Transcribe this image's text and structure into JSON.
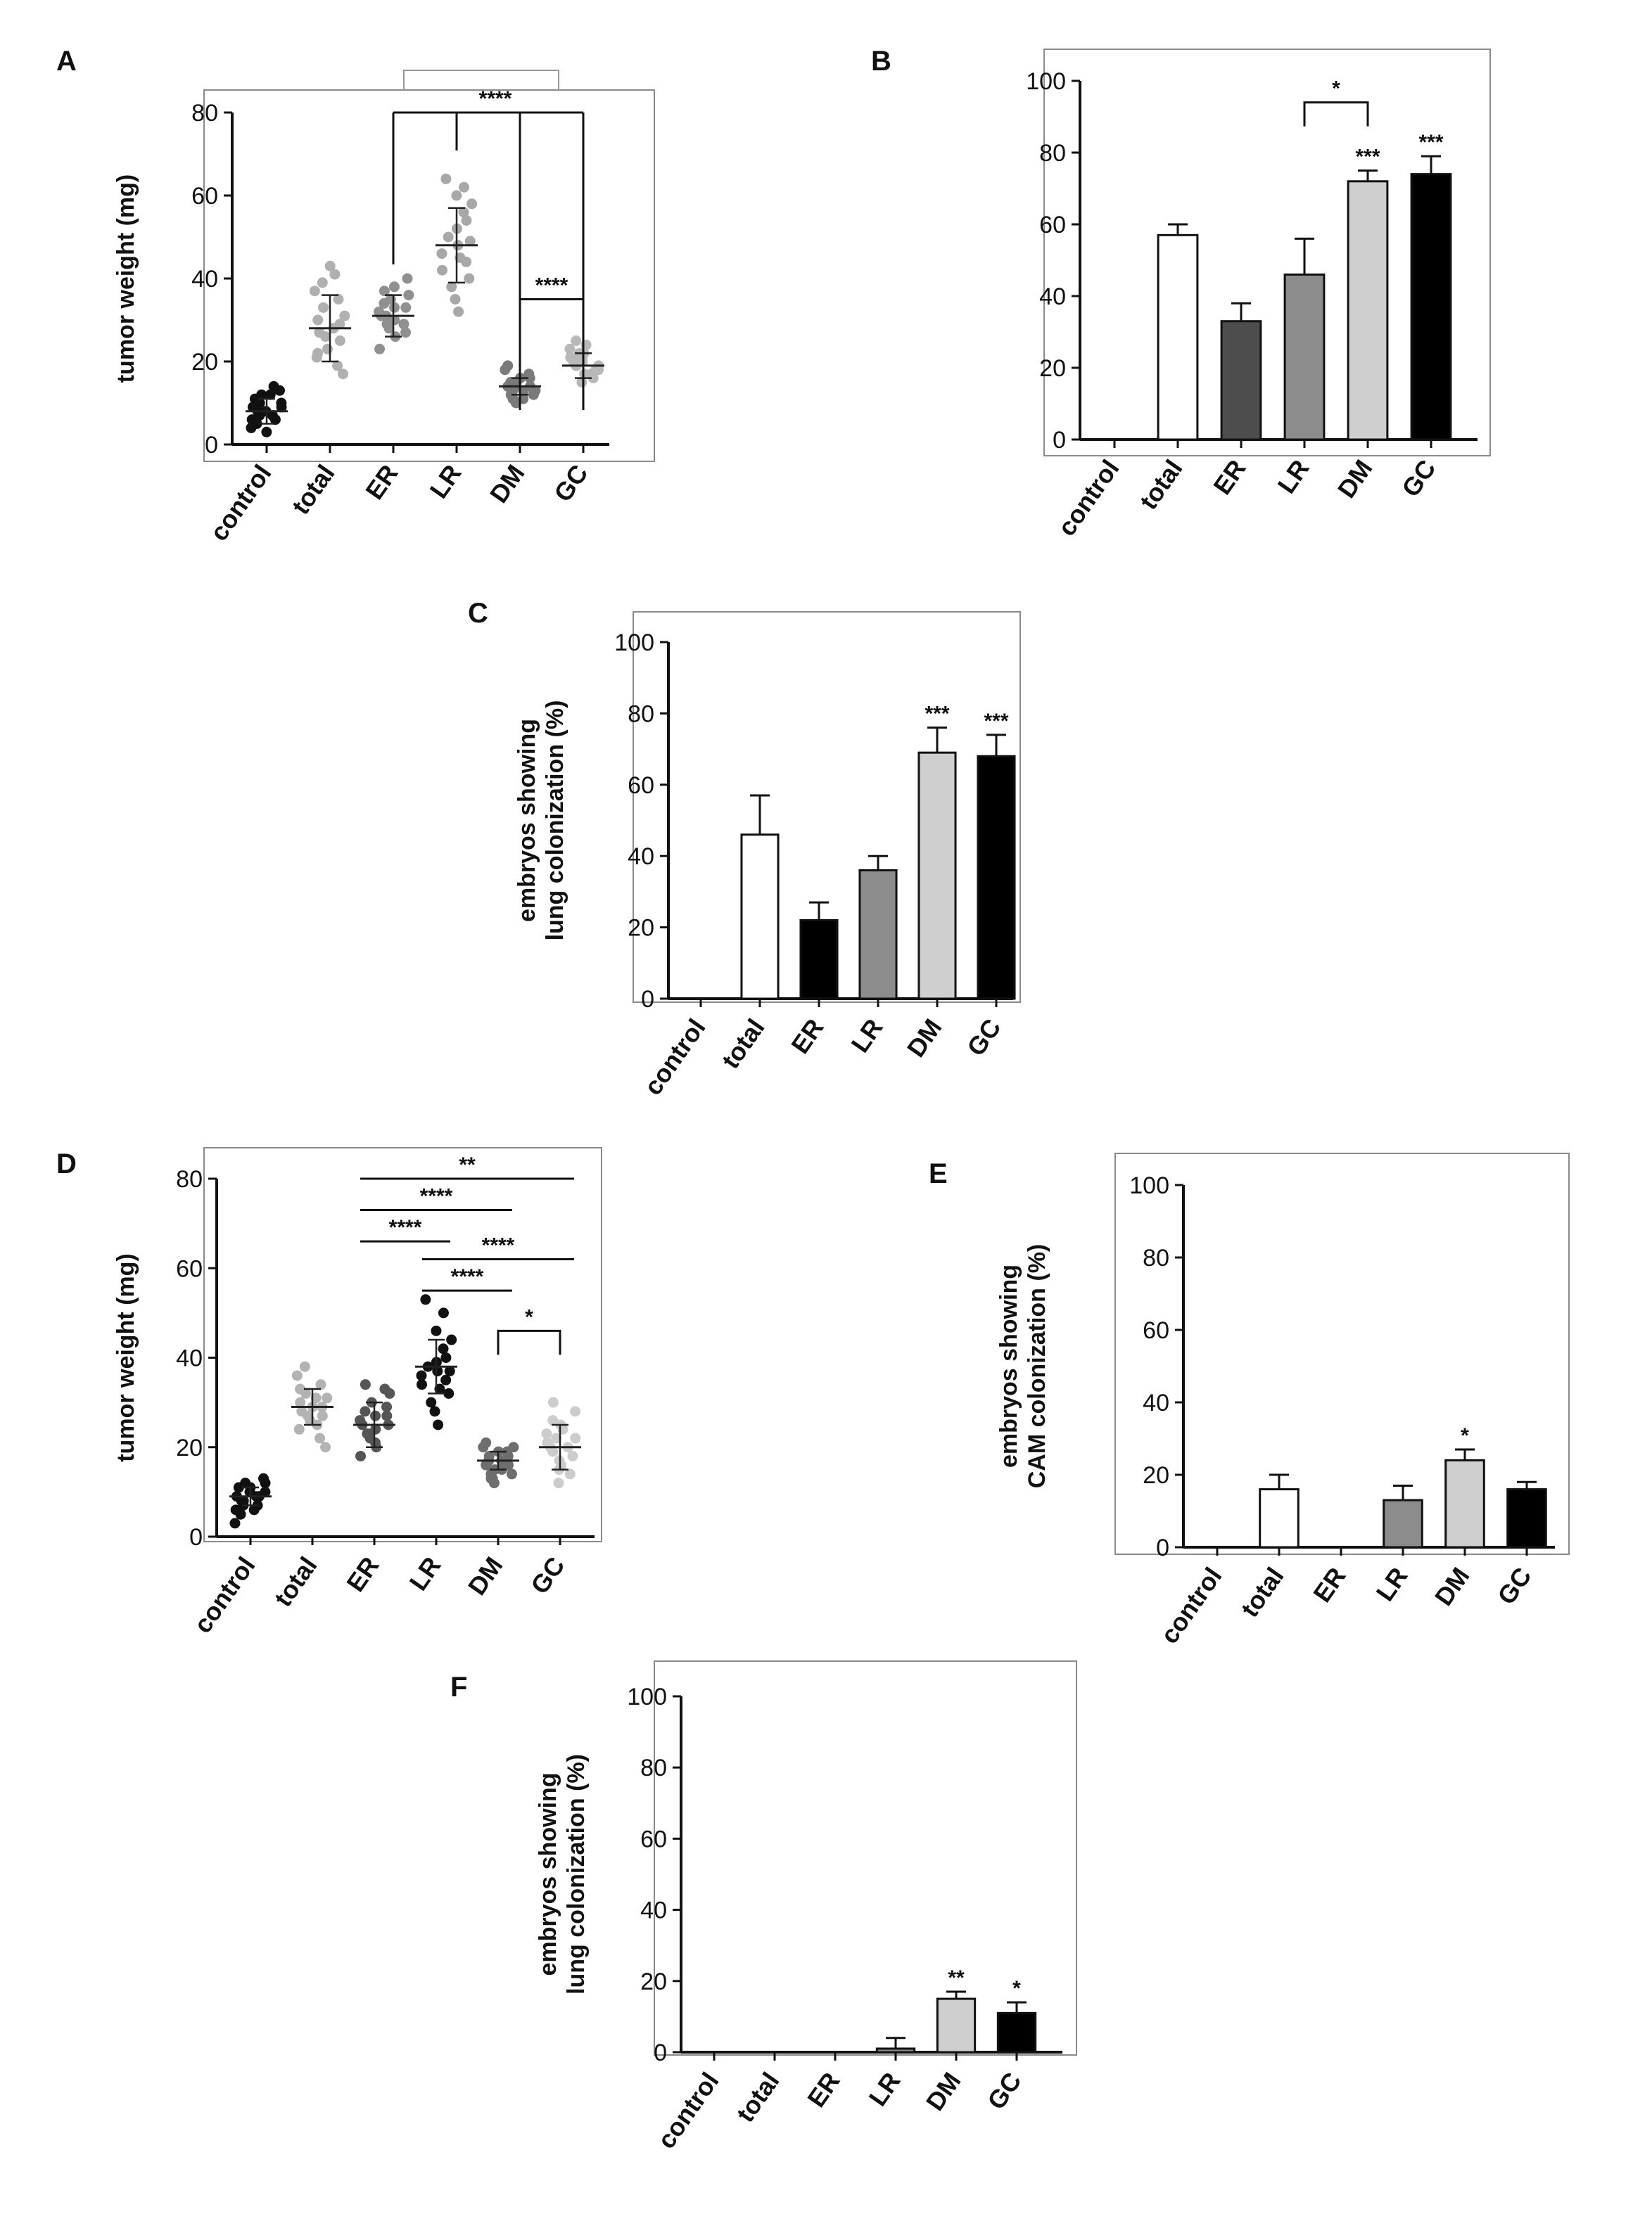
{
  "chart_data": [
    {
      "panel": "A",
      "type": "scatter",
      "ylabel": "tumor weight (mg)",
      "ylim": [
        0,
        80
      ],
      "yticks": [
        0,
        20,
        40,
        60,
        80
      ],
      "categories": [
        "control",
        "total",
        "ER",
        "LR",
        "DM",
        "GC"
      ],
      "colors": [
        "#111111",
        "#b0b0b0",
        "#909090",
        "#a8a8a8",
        "#7a7a7a",
        "#b8b8b8"
      ],
      "points": [
        [
          4,
          5,
          6,
          7,
          8,
          9,
          10,
          11,
          12,
          13,
          14,
          6,
          8,
          10,
          3,
          12,
          9,
          7
        ],
        [
          17,
          19,
          21,
          23,
          25,
          27,
          29,
          30,
          31,
          33,
          35,
          37,
          39,
          41,
          43,
          22,
          26,
          28
        ],
        [
          23,
          26,
          28,
          29,
          30,
          31,
          32,
          33,
          34,
          35,
          36,
          37,
          38,
          40,
          27,
          31,
          33,
          29
        ],
        [
          32,
          35,
          38,
          40,
          42,
          44,
          46,
          48,
          50,
          52,
          54,
          56,
          58,
          60,
          62,
          64,
          45,
          49
        ],
        [
          10,
          11,
          12,
          13,
          14,
          15,
          16,
          17,
          18,
          19,
          13,
          14,
          12,
          15,
          11,
          16,
          14,
          13
        ],
        [
          15,
          16,
          17,
          18,
          19,
          20,
          21,
          22,
          23,
          24,
          25,
          18,
          19,
          20,
          21,
          17,
          22,
          19
        ]
      ],
      "mean": [
        8,
        28,
        31,
        48,
        14,
        19
      ],
      "sd": [
        3,
        8,
        5,
        9,
        2,
        3
      ],
      "significance": [
        {
          "type": "bracket-multi",
          "from": 2,
          "to": 5,
          "drops": [
            2,
            3,
            4,
            5
          ],
          "y": 80,
          "label": "****"
        },
        {
          "type": "bracket",
          "from": 4,
          "to": 5,
          "y": 35,
          "label": "****"
        }
      ]
    },
    {
      "panel": "B",
      "type": "bar",
      "ylabel": "",
      "ylim": [
        0,
        100
      ],
      "yticks": [
        0,
        20,
        40,
        60,
        80,
        100
      ],
      "categories": [
        "control",
        "total",
        "ER",
        "LR",
        "DM",
        "GC"
      ],
      "values": [
        0,
        57,
        33,
        46,
        72,
        74
      ],
      "errors": [
        0,
        3,
        5,
        10,
        3,
        5
      ],
      "colors": [
        "#ffffff",
        "#ffffff",
        "#4d4d4d",
        "#8c8c8c",
        "#cfcfcf",
        "#000000"
      ],
      "stars": [
        "",
        "",
        "",
        "",
        "***",
        "***"
      ],
      "significance": [
        {
          "type": "bracket",
          "from": 3,
          "to": 4,
          "y": 94,
          "label": "*"
        }
      ]
    },
    {
      "panel": "C",
      "type": "bar",
      "ylabel": "embryos showing\nlung colonization (%)",
      "ylim": [
        0,
        100
      ],
      "yticks": [
        0,
        20,
        40,
        60,
        80,
        100
      ],
      "categories": [
        "control",
        "total",
        "ER",
        "LR",
        "DM",
        "GC"
      ],
      "values": [
        0,
        46,
        22,
        36,
        69,
        68
      ],
      "errors": [
        0,
        11,
        5,
        4,
        7,
        6
      ],
      "colors": [
        "#ffffff",
        "#ffffff",
        "#000000",
        "#8c8c8c",
        "#cfcfcf",
        "#000000"
      ],
      "stars": [
        "",
        "",
        "",
        "",
        "***",
        "***"
      ],
      "significance": []
    },
    {
      "panel": "D",
      "type": "scatter",
      "ylabel": "tumor weight (mg)",
      "ylim": [
        0,
        80
      ],
      "yticks": [
        0,
        20,
        40,
        60,
        80
      ],
      "categories": [
        "control",
        "total",
        "ER",
        "LR",
        "DM",
        "GC"
      ],
      "colors": [
        "#111111",
        "#b3b3b3",
        "#555555",
        "#111111",
        "#6e6e6e",
        "#cccccc"
      ],
      "points": [
        [
          3,
          5,
          6,
          7,
          8,
          9,
          10,
          11,
          12,
          13,
          7,
          9,
          10,
          8,
          11,
          6,
          12,
          9
        ],
        [
          20,
          22,
          24,
          26,
          27,
          28,
          29,
          30,
          31,
          32,
          34,
          36,
          38,
          25,
          29,
          33,
          27,
          31
        ],
        [
          18,
          20,
          22,
          23,
          24,
          25,
          26,
          27,
          28,
          30,
          32,
          34,
          21,
          25,
          29,
          23,
          27,
          33
        ],
        [
          25,
          28,
          30,
          32,
          34,
          35,
          36,
          37,
          38,
          39,
          40,
          42,
          44,
          46,
          50,
          53,
          33,
          37
        ],
        [
          12,
          13,
          14,
          15,
          16,
          17,
          18,
          19,
          20,
          21,
          14,
          16,
          18,
          15,
          17,
          19,
          13,
          20
        ],
        [
          12,
          14,
          16,
          18,
          19,
          20,
          21,
          22,
          23,
          24,
          26,
          28,
          30,
          15,
          17,
          20,
          25,
          22
        ]
      ],
      "mean": [
        9,
        29,
        25,
        38,
        17,
        20
      ],
      "sd": [
        2,
        4,
        5,
        6,
        2,
        5
      ],
      "significance": [
        {
          "type": "line",
          "from": 2,
          "to": 5,
          "y": 80,
          "label": "**"
        },
        {
          "type": "line",
          "from": 2,
          "to": 4,
          "y": 73,
          "label": "****"
        },
        {
          "type": "line",
          "from": 2,
          "to": 3,
          "y": 66,
          "label": "****"
        },
        {
          "type": "line",
          "from": 3,
          "to": 5,
          "y": 62,
          "label": "****"
        },
        {
          "type": "line",
          "from": 3,
          "to": 4,
          "y": 55,
          "label": "****"
        },
        {
          "type": "bracket",
          "from": 4,
          "to": 5,
          "y": 46,
          "label": "*"
        }
      ]
    },
    {
      "panel": "E",
      "type": "bar",
      "ylabel": "embryos showing\nCAM colonization (%)",
      "ylim": [
        0,
        100
      ],
      "yticks": [
        0,
        20,
        40,
        60,
        80,
        100
      ],
      "categories": [
        "control",
        "total",
        "ER",
        "LR",
        "DM",
        "GC"
      ],
      "values": [
        0,
        16,
        0,
        13,
        24,
        16
      ],
      "errors": [
        0,
        4,
        0,
        4,
        3,
        2
      ],
      "colors": [
        "#ffffff",
        "#ffffff",
        "#ffffff",
        "#8c8c8c",
        "#cfcfcf",
        "#000000"
      ],
      "stars": [
        "",
        "",
        "",
        "",
        "*",
        ""
      ],
      "significance": []
    },
    {
      "panel": "F",
      "type": "bar",
      "ylabel": "embryos showing\nlung colonization (%)",
      "ylim": [
        0,
        100
      ],
      "yticks": [
        0,
        20,
        40,
        60,
        80,
        100
      ],
      "categories": [
        "control",
        "total",
        "ER",
        "LR",
        "DM",
        "GC"
      ],
      "values": [
        0,
        0,
        0,
        1,
        15,
        11
      ],
      "errors": [
        0,
        0,
        0,
        3,
        2,
        3
      ],
      "colors": [
        "#ffffff",
        "#ffffff",
        "#ffffff",
        "#8c8c8c",
        "#cfcfcf",
        "#000000"
      ],
      "stars": [
        "",
        "",
        "",
        "",
        "**",
        "*"
      ],
      "significance": []
    }
  ]
}
